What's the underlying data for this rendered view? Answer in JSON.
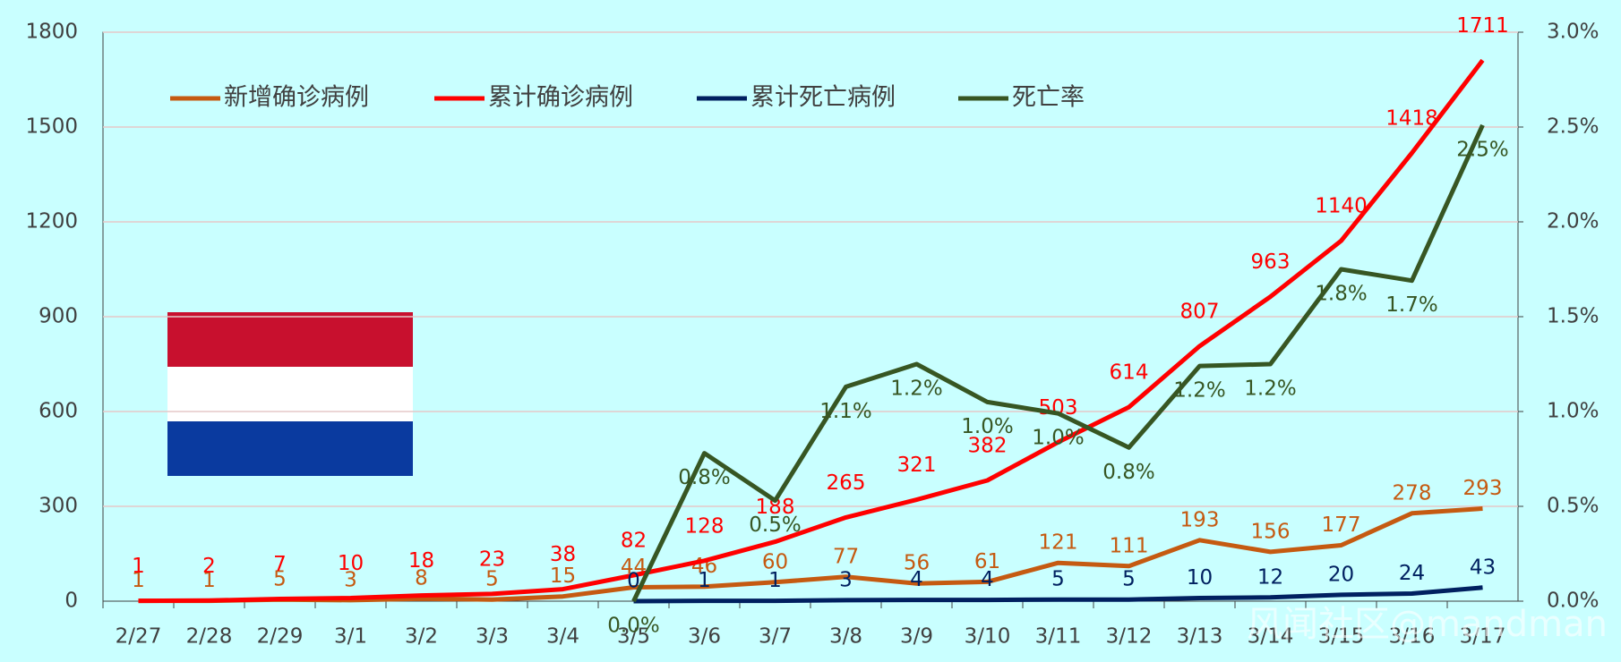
{
  "chart_data": {
    "type": "line",
    "categories": [
      "2/27",
      "2/28",
      "2/29",
      "3/1",
      "3/2",
      "3/3",
      "3/4",
      "3/5",
      "3/6",
      "3/7",
      "3/8",
      "3/9",
      "3/10",
      "3/11",
      "3/12",
      "3/13",
      "3/14",
      "3/15",
      "3/16",
      "3/17"
    ],
    "series": [
      {
        "name": "新增确诊病例",
        "color": "#c55a11",
        "values": [
          1,
          1,
          5,
          3,
          8,
          5,
          15,
          44,
          46,
          60,
          77,
          56,
          61,
          121,
          111,
          193,
          156,
          177,
          278,
          293
        ]
      },
      {
        "name": "累计确诊病例",
        "color": "#ff0000",
        "values": [
          1,
          2,
          7,
          10,
          18,
          23,
          38,
          82,
          128,
          188,
          265,
          321,
          382,
          503,
          614,
          807,
          963,
          1140,
          1418,
          1711
        ]
      },
      {
        "name": "累计死亡病例",
        "color": "#002060",
        "values": [
          null,
          null,
          null,
          null,
          null,
          null,
          null,
          0,
          1,
          1,
          3,
          4,
          4,
          5,
          5,
          10,
          12,
          20,
          24,
          43
        ]
      },
      {
        "name": "死亡率",
        "color": "#375623",
        "axis": "y2",
        "values": [
          null,
          null,
          null,
          null,
          null,
          null,
          null,
          0,
          0.78,
          0.53,
          1.13,
          1.25,
          1.05,
          0.99,
          0.81,
          1.24,
          1.25,
          1.75,
          1.69,
          2.51
        ],
        "value_labels": [
          null,
          null,
          null,
          null,
          null,
          null,
          null,
          "0.0%",
          "0.8%",
          "0.5%",
          "1.1%",
          "1.2%",
          "1.0%",
          "1.0%",
          "0.8%",
          "1.2%",
          "1.2%",
          "1.8%",
          "1.7%",
          "2.5%"
        ]
      }
    ],
    "ylim": [
      0,
      1800
    ],
    "yticks": [
      0,
      300,
      600,
      900,
      1200,
      1500,
      1800
    ],
    "y2lim": [
      0,
      3
    ],
    "y2ticks": [
      {
        "value": 0,
        "label": "0.0%"
      },
      {
        "value": 0.5,
        "label": "0.5%"
      },
      {
        "value": 1,
        "label": "1.0%"
      },
      {
        "value": 1.5,
        "label": "1.5%"
      },
      {
        "value": 2,
        "label": "2.0%"
      },
      {
        "value": 2.5,
        "label": "2.5%"
      },
      {
        "value": 3,
        "label": "3.0%"
      }
    ],
    "grid": true,
    "legend": "top",
    "watermark": "风闻社区@mandman"
  }
}
